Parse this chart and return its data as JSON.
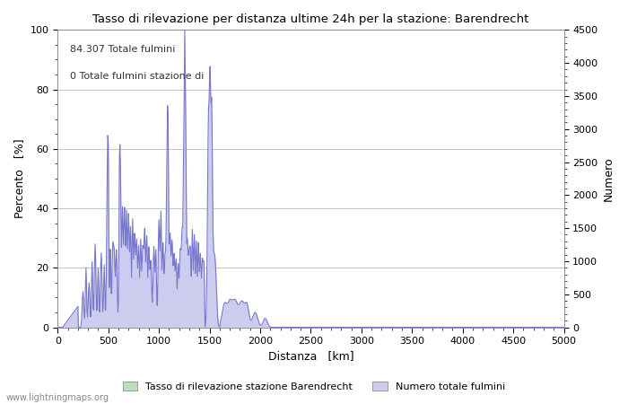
{
  "title": "Tasso di rilevazione per distanza ultime 24h per la stazione: Barendrecht",
  "xlabel": "Distanza   [km]",
  "ylabel_left": "Percento   [%]",
  "ylabel_right": "Numero",
  "annotation_line1": "84.307 Totale fulmini",
  "annotation_line2": "0 Totale fulmini stazione di",
  "xlim": [
    0,
    5000
  ],
  "ylim_left": [
    0,
    100
  ],
  "ylim_right": [
    0,
    4500
  ],
  "xticks": [
    0,
    500,
    1000,
    1500,
    2000,
    2500,
    3000,
    3500,
    4000,
    4500,
    5000
  ],
  "yticks_left": [
    0,
    20,
    40,
    60,
    80,
    100
  ],
  "yticks_right": [
    0,
    500,
    1000,
    1500,
    2000,
    2500,
    3000,
    3500,
    4000,
    4500
  ],
  "legend_entries": [
    "Tasso di rilevazione stazione Barendrecht",
    "Numero totale fulmini"
  ],
  "legend_colors": [
    "#aaddaa",
    "#aaaaee"
  ],
  "watermark": "www.lightningmaps.org",
  "bg_color": "#ffffff",
  "plot_bg_color": "#ffffff",
  "grid_color": "#bbbbbb",
  "line_color": "#7777cc",
  "fill_color": "#ccccee",
  "green_fill_color": "#bbddbb"
}
